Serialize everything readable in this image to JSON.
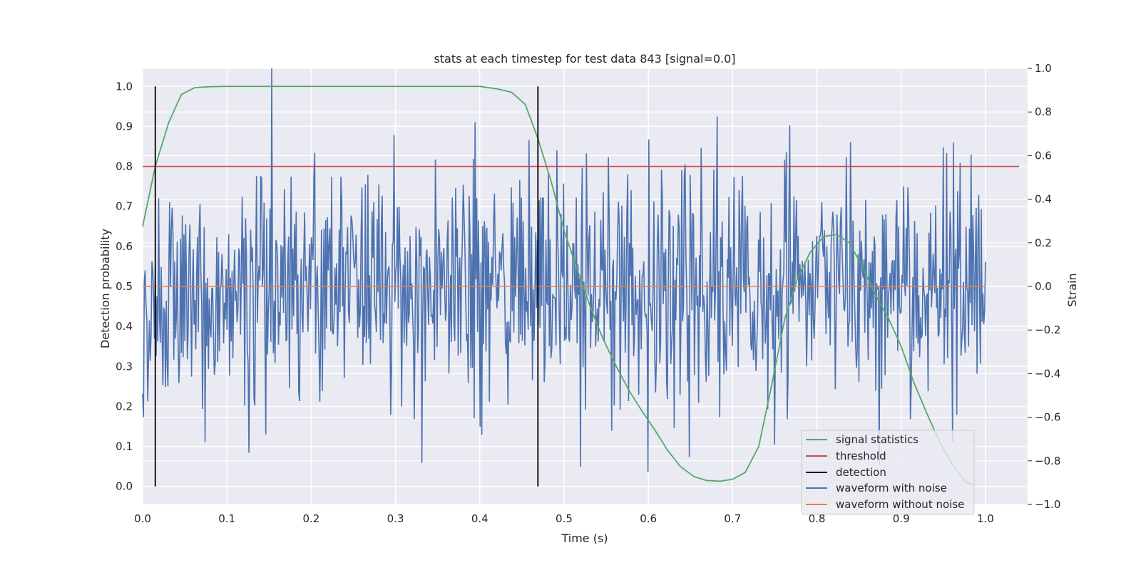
{
  "chart_data": {
    "type": "line",
    "title": "stats at each timestep for test data 843 [signal=0.0]",
    "xlabel": "Time (s)",
    "ylabel_left": "Detection probability",
    "ylabel_right": "Strain",
    "xlim": [
      0.0,
      1.05
    ],
    "ylim_left": [
      -0.045,
      1.045
    ],
    "ylim_right": [
      -1.0,
      1.0
    ],
    "x_ticks": [
      "0.0",
      "0.1",
      "0.2",
      "0.3",
      "0.4",
      "0.5",
      "0.6",
      "0.7",
      "0.8",
      "0.9",
      "1.0"
    ],
    "y_ticks_left": [
      "0.0",
      "0.1",
      "0.2",
      "0.3",
      "0.4",
      "0.5",
      "0.6",
      "0.7",
      "0.8",
      "0.9",
      "1.0"
    ],
    "y_ticks_right": [
      "−1.0",
      "−0.8",
      "−0.6",
      "−0.4",
      "−0.2",
      "0.0",
      "0.2",
      "0.4",
      "0.6",
      "0.8",
      "1.0"
    ],
    "grid": true,
    "legend_position": "lower-right",
    "series": [
      {
        "name": "signal statistics",
        "color": "#55a868",
        "axis": "left",
        "x": [
          0.0,
          0.015,
          0.031,
          0.046,
          0.062,
          0.077,
          0.1,
          0.2,
          0.3,
          0.4,
          0.41,
          0.423,
          0.438,
          0.454,
          0.469,
          0.485,
          0.5,
          0.516,
          0.531,
          0.546,
          0.562,
          0.577,
          0.592,
          0.608,
          0.623,
          0.638,
          0.654,
          0.669,
          0.685,
          0.7,
          0.715,
          0.731,
          0.746,
          0.762,
          0.777,
          0.792,
          0.808,
          0.823,
          0.838,
          0.854,
          0.869,
          0.885,
          0.9,
          0.915,
          0.931,
          0.946,
          0.962,
          0.977,
          0.987
        ],
        "y": [
          0.65,
          0.8,
          0.91,
          0.98,
          0.997,
          0.999,
          1.0,
          1.0,
          1.0,
          1.0,
          0.997,
          0.993,
          0.985,
          0.955,
          0.87,
          0.76,
          0.64,
          0.54,
          0.45,
          0.37,
          0.3,
          0.24,
          0.19,
          0.14,
          0.09,
          0.05,
          0.025,
          0.015,
          0.013,
          0.018,
          0.035,
          0.1,
          0.25,
          0.42,
          0.52,
          0.585,
          0.625,
          0.63,
          0.61,
          0.55,
          0.48,
          0.42,
          0.35,
          0.26,
          0.18,
          0.11,
          0.05,
          0.01,
          0.003
        ]
      },
      {
        "name": "threshold",
        "color": "#c44e52",
        "axis": "left",
        "x": [
          0.0,
          1.04
        ],
        "y": [
          0.8,
          0.8
        ]
      },
      {
        "name": "detection",
        "color": "#000000",
        "axis": "left",
        "segments": [
          {
            "x": 0.015,
            "y": [
              0.0,
              1.0
            ]
          },
          {
            "x": 0.469,
            "y": [
              0.0,
              1.0
            ]
          }
        ]
      },
      {
        "name": "waveform with noise",
        "color": "#4c72b0",
        "axis": "right",
        "x_range": [
          0.0,
          1.0
        ],
        "num_points": 1000,
        "y_min": -0.92,
        "y_max": 1.0,
        "y_mean": 0.0,
        "y_std": 0.27
      },
      {
        "name": "waveform without noise",
        "color": "#dd8452",
        "axis": "right",
        "x": [
          0.0,
          1.0
        ],
        "y": [
          0.0,
          0.0
        ]
      }
    ]
  }
}
